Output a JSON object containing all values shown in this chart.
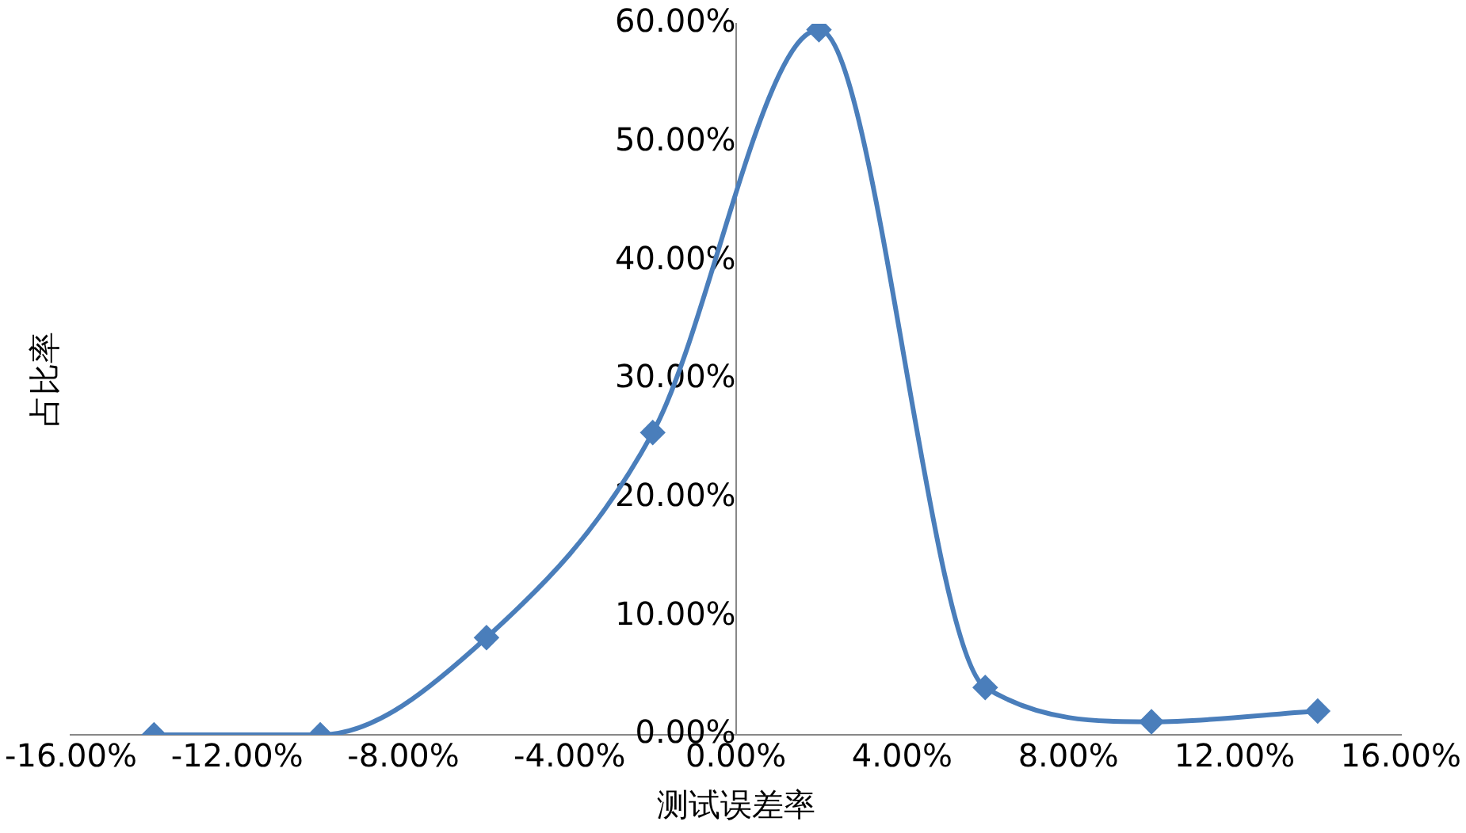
{
  "chart_data": {
    "type": "line",
    "xlabel": "测试误差率",
    "ylabel": "占比率",
    "x": [
      -14,
      -10,
      -6,
      -2,
      2,
      6,
      10,
      14
    ],
    "series": [
      {
        "color": "#4a7ebb",
        "values": [
          0,
          0,
          8.2,
          25.5,
          59.5,
          4.0,
          1.1,
          2.0
        ]
      }
    ],
    "xlim": [
      -16,
      16
    ],
    "xticks": [
      {
        "value": -16,
        "label": "-16.00%"
      },
      {
        "value": -12,
        "label": "-12.00%"
      },
      {
        "value": -8,
        "label": "-8.00%"
      },
      {
        "value": -4,
        "label": "-4.00%"
      },
      {
        "value": 0,
        "label": "0.00%"
      },
      {
        "value": 4,
        "label": "4.00%"
      },
      {
        "value": 8,
        "label": "8.00%"
      },
      {
        "value": 12,
        "label": "12.00%"
      },
      {
        "value": 16,
        "label": "16.00%"
      }
    ],
    "ylim": [
      0,
      60
    ],
    "yticks": [
      {
        "value": 0,
        "label": "0.00%"
      },
      {
        "value": 10,
        "label": "10.00%"
      },
      {
        "value": 20,
        "label": "20.00%"
      },
      {
        "value": 30,
        "label": "30.00%"
      },
      {
        "value": 40,
        "label": "40.00%"
      },
      {
        "value": 50,
        "label": "50.00%"
      },
      {
        "value": 60,
        "label": "60.00%"
      }
    ],
    "grid": false,
    "legend": false,
    "marker": "diamond",
    "line_style": "solid"
  }
}
